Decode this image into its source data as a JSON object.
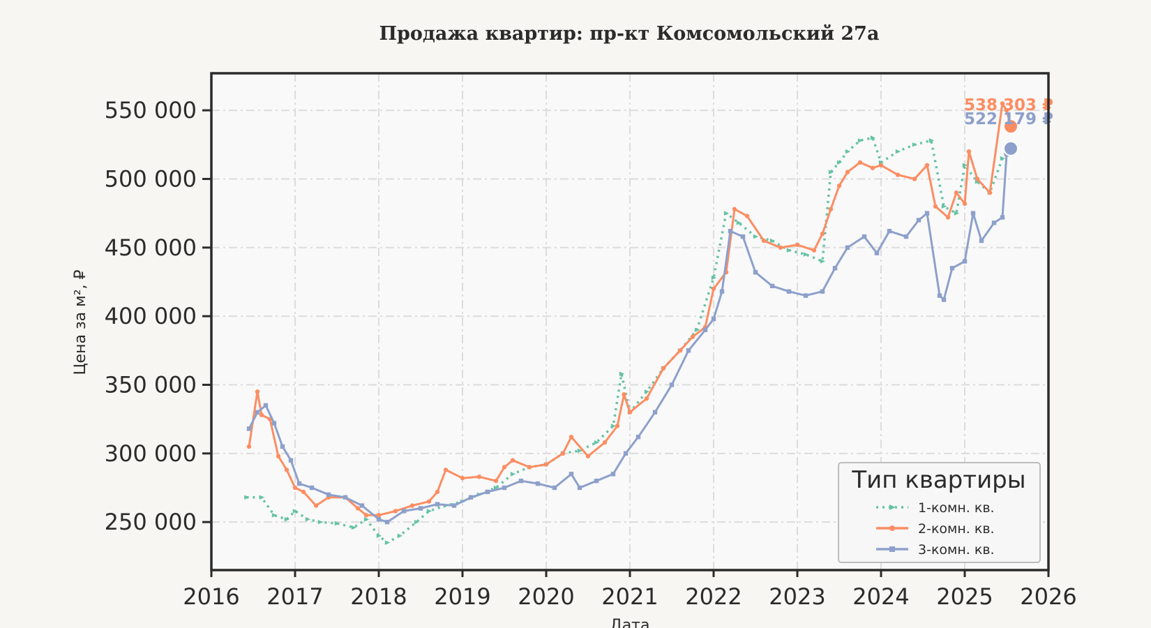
{
  "chart_data": {
    "type": "line",
    "title": "Продажа квартир: пр-кт Комсомольский 27а",
    "xlabel": "Дата",
    "ylabel": "Цена за м², ₽",
    "xlim": [
      2016,
      2026
    ],
    "ylim": [
      215000,
      577000
    ],
    "x_ticks": [
      2016,
      2017,
      2018,
      2019,
      2020,
      2021,
      2022,
      2023,
      2024,
      2025,
      2026
    ],
    "x_tick_labels": [
      "2016",
      "2017",
      "2018",
      "2019",
      "2020",
      "2021",
      "2022",
      "2023",
      "2024",
      "2025",
      "2026"
    ],
    "y_ticks": [
      250000,
      300000,
      350000,
      400000,
      450000,
      500000,
      550000
    ],
    "y_tick_labels": [
      "250 000",
      "300 000",
      "350 000",
      "400 000",
      "450 000",
      "500 000",
      "550 000"
    ],
    "grid": true,
    "legend": {
      "title": "Тип квартиры",
      "position": "bottom-right"
    },
    "series": [
      {
        "name": "1-комн. кв.",
        "color": "#66c2a5",
        "line_style": "dotted",
        "marker": "triangle-right",
        "x": [
          2016.42,
          2016.6,
          2016.75,
          2016.9,
          2017.0,
          2017.15,
          2017.3,
          2017.5,
          2017.7,
          2017.85,
          2018.0,
          2018.1,
          2018.25,
          2018.45,
          2018.6,
          2018.8,
          2019.0,
          2019.2,
          2019.4,
          2019.6,
          2019.8,
          2020.0,
          2020.2,
          2020.4,
          2020.6,
          2020.8,
          2020.9,
          2021.0,
          2021.2,
          2021.4,
          2021.6,
          2021.8,
          2022.0,
          2022.15,
          2022.3,
          2022.5,
          2022.7,
          2022.9,
          2023.1,
          2023.3,
          2023.4,
          2023.5,
          2023.6,
          2023.75,
          2023.9,
          2024.0,
          2024.2,
          2024.4,
          2024.6,
          2024.75,
          2024.9,
          2025.0,
          2025.15,
          2025.3,
          2025.45,
          2025.5
        ],
        "y": [
          268000,
          268000,
          255000,
          252000,
          258000,
          252000,
          250000,
          249000,
          246000,
          252000,
          240000,
          235000,
          240000,
          250000,
          258000,
          262000,
          265000,
          270000,
          275000,
          285000,
          290000,
          292000,
          300000,
          302000,
          308000,
          320000,
          358000,
          330000,
          345000,
          362000,
          375000,
          390000,
          428000,
          475000,
          468000,
          458000,
          455000,
          448000,
          445000,
          440000,
          505000,
          512000,
          520000,
          528000,
          530000,
          512000,
          520000,
          525000,
          528000,
          480000,
          475000,
          510000,
          498000,
          490000,
          515000,
          520000
        ]
      },
      {
        "name": "2-комн. кв.",
        "color": "#fc8d62",
        "line_style": "solid",
        "marker": "circle",
        "x": [
          2016.45,
          2016.55,
          2016.6,
          2016.7,
          2016.8,
          2016.9,
          2017.0,
          2017.1,
          2017.25,
          2017.4,
          2017.6,
          2017.75,
          2017.85,
          2018.0,
          2018.2,
          2018.4,
          2018.6,
          2018.7,
          2018.8,
          2019.0,
          2019.2,
          2019.4,
          2019.5,
          2019.6,
          2019.8,
          2020.0,
          2020.2,
          2020.3,
          2020.5,
          2020.7,
          2020.85,
          2020.93,
          2021.0,
          2021.2,
          2021.4,
          2021.6,
          2021.75,
          2021.9,
          2022.0,
          2022.15,
          2022.25,
          2022.4,
          2022.6,
          2022.8,
          2023.0,
          2023.2,
          2023.3,
          2023.4,
          2023.5,
          2023.6,
          2023.75,
          2023.9,
          2024.0,
          2024.2,
          2024.4,
          2024.55,
          2024.65,
          2024.8,
          2024.9,
          2025.0,
          2025.05,
          2025.15,
          2025.3,
          2025.45,
          2025.5,
          2025.55
        ],
        "y": [
          305000,
          345000,
          328000,
          325000,
          298000,
          288000,
          275000,
          272000,
          262000,
          268000,
          268000,
          260000,
          255000,
          255000,
          258000,
          262000,
          265000,
          272000,
          288000,
          282000,
          283000,
          280000,
          290000,
          295000,
          290000,
          292000,
          300000,
          312000,
          298000,
          308000,
          320000,
          343000,
          330000,
          340000,
          362000,
          375000,
          385000,
          392000,
          420000,
          432000,
          478000,
          473000,
          455000,
          450000,
          452000,
          448000,
          460000,
          478000,
          495000,
          505000,
          512000,
          508000,
          510000,
          503000,
          500000,
          510000,
          480000,
          472000,
          490000,
          482000,
          520000,
          500000,
          490000,
          555000,
          550000,
          538303
        ]
      },
      {
        "name": "3-комн. кв.",
        "color": "#8da0cb",
        "line_style": "solid",
        "marker": "square",
        "x": [
          2016.45,
          2016.55,
          2016.65,
          2016.75,
          2016.85,
          2016.95,
          2017.05,
          2017.2,
          2017.4,
          2017.6,
          2017.8,
          2018.0,
          2018.1,
          2018.3,
          2018.5,
          2018.7,
          2018.9,
          2019.1,
          2019.3,
          2019.5,
          2019.7,
          2019.9,
          2020.1,
          2020.3,
          2020.4,
          2020.6,
          2020.8,
          2020.95,
          2021.1,
          2021.3,
          2021.5,
          2021.7,
          2021.9,
          2022.0,
          2022.1,
          2022.2,
          2022.35,
          2022.5,
          2022.7,
          2022.9,
          2023.1,
          2023.3,
          2023.45,
          2023.6,
          2023.8,
          2023.95,
          2024.1,
          2024.3,
          2024.45,
          2024.55,
          2024.7,
          2024.75,
          2024.85,
          2025.0,
          2025.1,
          2025.2,
          2025.35,
          2025.45,
          2025.5,
          2025.55
        ],
        "y": [
          318000,
          330000,
          335000,
          322000,
          305000,
          295000,
          278000,
          275000,
          270000,
          268000,
          262000,
          252000,
          250000,
          258000,
          260000,
          263000,
          262000,
          268000,
          272000,
          275000,
          280000,
          278000,
          275000,
          285000,
          275000,
          280000,
          285000,
          300000,
          312000,
          330000,
          350000,
          375000,
          390000,
          398000,
          418000,
          462000,
          458000,
          432000,
          422000,
          418000,
          415000,
          418000,
          435000,
          450000,
          458000,
          446000,
          462000,
          458000,
          470000,
          475000,
          415000,
          412000,
          435000,
          440000,
          475000,
          455000,
          468000,
          472000,
          518000,
          522179
        ]
      }
    ],
    "annotations": [
      {
        "series": "2-комн. кв.",
        "label": "538 303 ₽",
        "x": 2025.55,
        "y": 538303
      },
      {
        "series": "3-комн. кв.",
        "label": "522 179 ₽",
        "x": 2025.55,
        "y": 522179
      }
    ]
  }
}
